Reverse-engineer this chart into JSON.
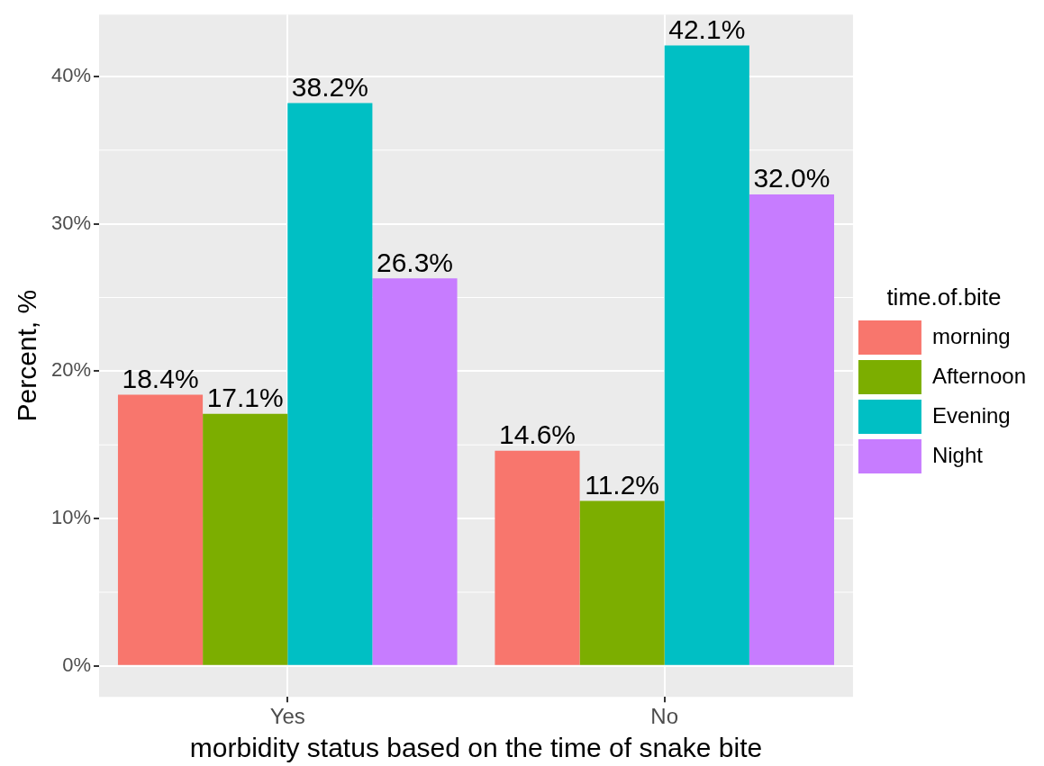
{
  "chart_data": {
    "type": "bar",
    "xlabel": "morbidity status based on the time of snake bite",
    "ylabel": "Percent, %",
    "legend_title": "time.of.bite",
    "categories": [
      "Yes",
      "No"
    ],
    "series": [
      {
        "name": "morning",
        "color": "#f8766d",
        "values": [
          18.4,
          14.6
        ],
        "value_labels": [
          "18.4%",
          "14.6%"
        ]
      },
      {
        "name": "Afternoon",
        "color": "#7cae00",
        "values": [
          17.1,
          11.2
        ],
        "value_labels": [
          "17.1%",
          "11.2%"
        ]
      },
      {
        "name": "Evening",
        "color": "#00bfc4",
        "values": [
          38.2,
          42.1
        ],
        "value_labels": [
          "38.2%",
          "42.1%"
        ]
      },
      {
        "name": "Night",
        "color": "#c77cff",
        "values": [
          26.3,
          32.0
        ],
        "value_labels": [
          "26.3%",
          "32.0%"
        ]
      }
    ],
    "ylim": [
      -2.1,
      44.2
    ],
    "yticks": [
      {
        "value": 0,
        "label": "0%"
      },
      {
        "value": 10,
        "label": "10%"
      },
      {
        "value": 20,
        "label": "20%"
      },
      {
        "value": 30,
        "label": "30%"
      },
      {
        "value": 40,
        "label": "40%"
      }
    ],
    "grid": true,
    "legend": "right"
  }
}
